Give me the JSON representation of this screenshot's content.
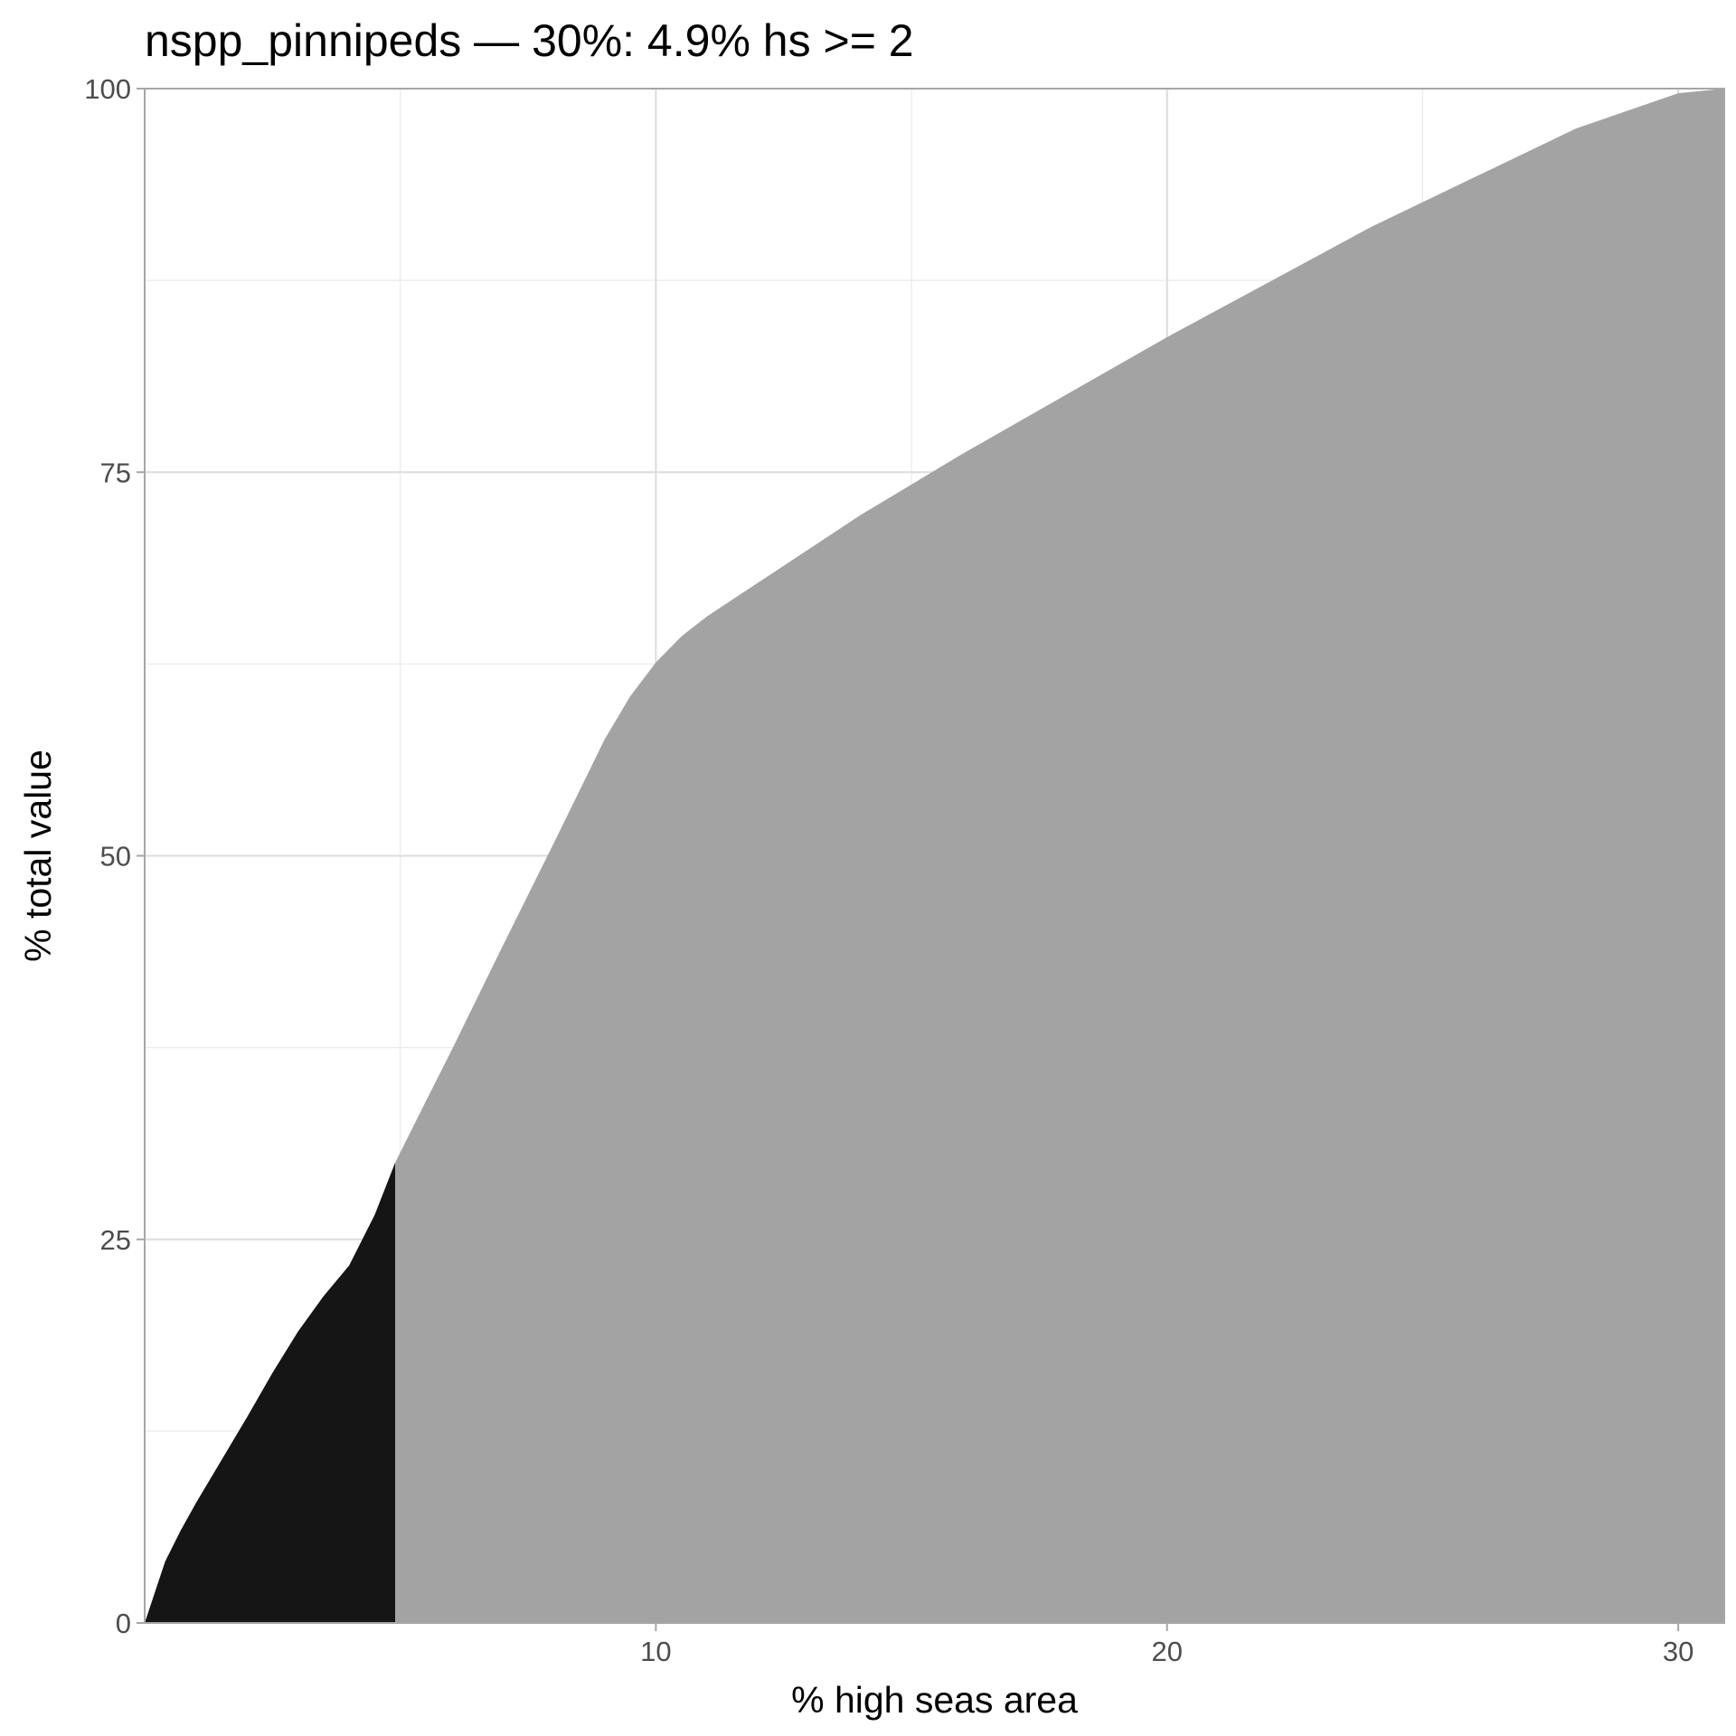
{
  "chart_data": {
    "type": "area",
    "title": "nspp_pinnipeds — 30%: 4.9% hs >= 2",
    "xlabel": "% high seas area",
    "ylabel": "% total value",
    "xlim": [
      0,
      30.9
    ],
    "ylim": [
      0,
      100
    ],
    "x_ticks": [
      10,
      20,
      30
    ],
    "y_ticks": [
      0,
      25,
      50,
      75,
      100
    ],
    "grid": true,
    "threshold_x": 4.9,
    "series": [
      {
        "x": [
          0,
          0.2,
          0.4,
          0.7,
          1.0,
          1.5,
          2.0,
          2.5,
          3.0,
          3.5,
          4.0,
          4.5,
          4.9,
          5.5,
          6.0,
          7.0,
          8.0,
          8.5,
          9.0,
          9.5,
          10.0,
          10.5,
          11.0,
          12.0,
          13.0,
          14.0,
          15.0,
          16.0,
          18.0,
          20.0,
          22.0,
          24.0,
          26.0,
          28.0,
          30.0,
          30.9
        ],
        "y": [
          0,
          2.0,
          4.0,
          6.0,
          7.8,
          10.6,
          13.4,
          16.3,
          19.0,
          21.3,
          23.3,
          26.6,
          30.0,
          34.0,
          37.3,
          44.1,
          50.8,
          54.2,
          57.6,
          60.4,
          62.6,
          64.3,
          65.6,
          67.8,
          70.0,
          72.2,
          74.2,
          76.2,
          80.0,
          83.8,
          87.4,
          91.0,
          94.2,
          97.4,
          99.7,
          100
        ]
      }
    ],
    "colors": {
      "fill_selected": "#151515",
      "fill_rest": "#a3a3a3"
    }
  }
}
